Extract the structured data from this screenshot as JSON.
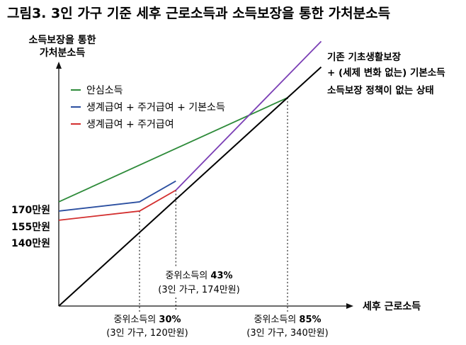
{
  "chart_data": {
    "type": "line",
    "title": "그림3. 3인 가구 기준 세후 근로소득과 소득보장을 통한 가처분소득",
    "ylabel": [
      "소득보장을 통한",
      "가처분소득"
    ],
    "xlabel": "세후 근로소득",
    "yticks": [
      "170만원",
      "155만원",
      "140만원"
    ],
    "legend": {
      "placement": "top-left",
      "entries": [
        {
          "label": "안심소득",
          "color": "#2e8b3a"
        },
        {
          "label": "생계급여 + 주거급여 + 기본소득",
          "color": "#2b4fa0"
        },
        {
          "label": "생계급여 + 주거급여",
          "color": "#d32f2f"
        }
      ]
    },
    "series": [
      {
        "name": "안심소득",
        "color": "#2e8b3a",
        "x": [
          0,
          340
        ],
        "y": [
          170,
          340
        ]
      },
      {
        "name": "생계급여 + 주거급여 + 기본소득",
        "color": "#2b4fa0",
        "x": [
          0,
          120,
          174
        ],
        "y": [
          155,
          170,
          204
        ]
      },
      {
        "name": "생계급여 + 주거급여",
        "color": "#d32f2f",
        "x": [
          0,
          120,
          174
        ],
        "y": [
          140,
          155,
          189
        ]
      },
      {
        "color": "#7b3fb5",
        "x": [
          174,
          390
        ],
        "y": [
          189,
          432
        ]
      },
      {
        "color": "#000000",
        "x": [
          0,
          390
        ],
        "y": [
          0,
          390
        ]
      }
    ],
    "right_note": {
      "lines": [
        "기존 기초생활보장",
        "+ (세제 변화 없는) 기본소득",
        "소득보장 정책이 없는 상태"
      ]
    },
    "guides": [
      {
        "x": 120,
        "line1_pre": "중위소득의 ",
        "line1_bold": "30%",
        "line2": "(3인 가구, 120만원)"
      },
      {
        "x": 174,
        "line1_pre": "중위소득의 ",
        "line1_bold": "43%",
        "line2": "(3인 가구, 174만원)"
      },
      {
        "x": 340,
        "line1_pre": "중위소득의 ",
        "line1_bold": "85%",
        "line2": "(3인 가구, 340만원)"
      }
    ]
  }
}
